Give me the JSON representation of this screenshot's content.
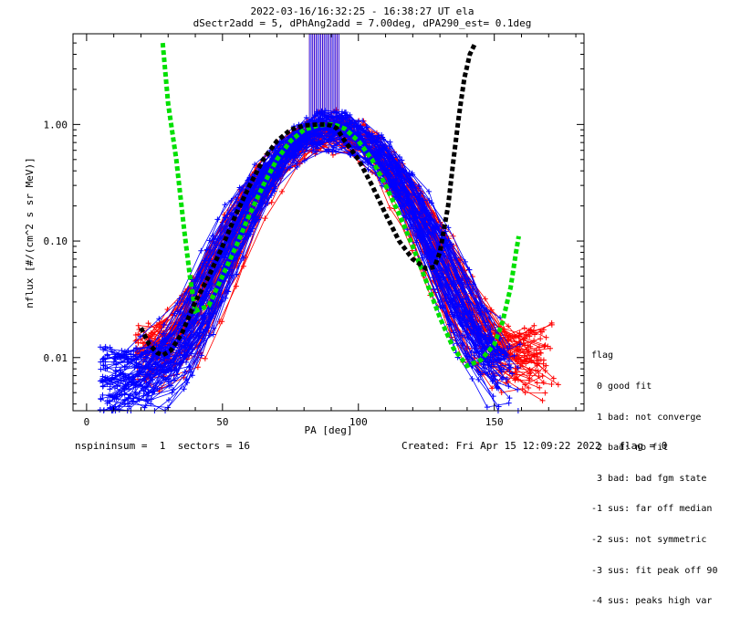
{
  "header": {
    "title_line1": "2022-03-16/16:32:25 - 16:38:27 UT ela",
    "title_line2": "dSectr2add = 5, dPhAng2add = 7.00deg, dPA290_est=    0.1deg"
  },
  "footer": {
    "left": "nspininsum =  1  sectors = 16",
    "right": "Created: Fri Apr 15 12:09:22 2022   flag = 0"
  },
  "legend": {
    "title": "flag",
    "items": [
      " 0 good fit",
      " 1 bad: not converge",
      " 2 bad: no fit",
      " 3 bad: bad fgm state",
      "-1 sus: far off median",
      "-2 sus: not symmetric",
      "-3 sus: fit peak off 90",
      "-4 sus: peaks high var"
    ]
  },
  "colors": {
    "series_red": "#ff0000",
    "series_blue": "#0000ff",
    "fit_green": "#00e000",
    "fit_black": "#000000"
  },
  "chart_data": {
    "type": "line",
    "xlabel": "PA [deg]",
    "ylabel": "nflux [#/(cm^2 s sr MeV)]",
    "xlim": [
      -5,
      183
    ],
    "ylim": [
      0.0035,
      6
    ],
    "yscale": "log",
    "xticks": [
      0,
      50,
      100,
      150
    ],
    "yticks": [
      0.01,
      0.1,
      1.0
    ],
    "ytick_labels": [
      "0.01",
      "0.10",
      "1.00"
    ],
    "grid": false,
    "peak_pa": 90,
    "series": [
      {
        "name": "red",
        "color_key": "series_red",
        "pa_min": 18,
        "pa_max": 175,
        "peak_flux": 0.9,
        "low_flux": 0.009
      },
      {
        "name": "blue",
        "color_key": "series_blue",
        "pa_min": 5,
        "pa_max": 160,
        "peak_flux": 0.95,
        "low_flux": 0.006
      }
    ],
    "fit_curves": [
      {
        "name": "green-fit",
        "color_key": "fit_green",
        "x": [
          28,
          30,
          33,
          36,
          38,
          40,
          45,
          50,
          55,
          60,
          65,
          70,
          75,
          80,
          85,
          88,
          90,
          92,
          95,
          100,
          105,
          110,
          115,
          120,
          125,
          130,
          135,
          140,
          145,
          150,
          153,
          156,
          158,
          159
        ],
        "y": [
          5.0,
          1.5,
          0.5,
          0.12,
          0.05,
          0.025,
          0.028,
          0.05,
          0.09,
          0.17,
          0.3,
          0.5,
          0.72,
          0.9,
          0.98,
          1.0,
          1.0,
          0.98,
          0.92,
          0.72,
          0.5,
          0.3,
          0.17,
          0.09,
          0.045,
          0.022,
          0.012,
          0.0085,
          0.0095,
          0.013,
          0.02,
          0.04,
          0.08,
          0.11
        ]
      },
      {
        "name": "black-fit",
        "color_key": "fit_black",
        "x": [
          20,
          23,
          26,
          28,
          31,
          35,
          40,
          45,
          50,
          55,
          60,
          65,
          70,
          75,
          80,
          85,
          88,
          90,
          92,
          95,
          100,
          105,
          110,
          115,
          120,
          125,
          128,
          130,
          133,
          135,
          137,
          139,
          141,
          143
        ],
        "y": [
          0.018,
          0.013,
          0.011,
          0.0105,
          0.0115,
          0.016,
          0.03,
          0.05,
          0.09,
          0.17,
          0.3,
          0.5,
          0.72,
          0.9,
          0.98,
          1.0,
          1.0,
          0.98,
          0.93,
          0.72,
          0.5,
          0.3,
          0.17,
          0.1,
          0.07,
          0.058,
          0.06,
          0.08,
          0.2,
          0.5,
          1.2,
          2.5,
          4.0,
          5.0
        ]
      }
    ],
    "annotations": []
  }
}
